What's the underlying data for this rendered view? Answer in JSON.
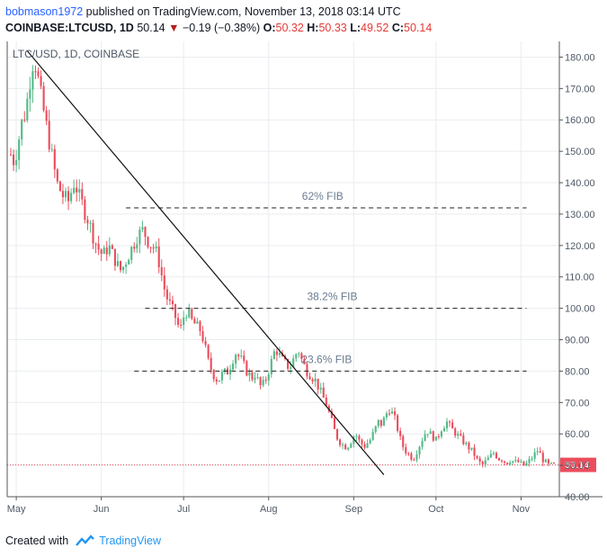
{
  "header": {
    "author": "bobmason1972",
    "published_text": "published on TradingView.com, November 13, 2018 03:14 UTC",
    "symbol": "COINBASE:LTCUSD, 1D",
    "last": "50.14",
    "change_arrow": "▼",
    "change": "−0.19 (−0.38%)",
    "o_label": "O:",
    "o_val": "50.32",
    "h_label": "H:",
    "h_val": "50.33",
    "l_label": "L:",
    "l_val": "49.52",
    "c_label": "C:",
    "c_val": "50.14"
  },
  "footer": {
    "created_with": "Created with",
    "brand": "TradingView"
  },
  "colors": {
    "up": "#53b987",
    "down": "#eb4d5c",
    "grid": "#e9ecef",
    "axis_text": "#4f5966",
    "price_tag": "#eb4d5c",
    "fib_text": "#6a7c90"
  },
  "chart_data": {
    "type": "candlestick",
    "title": "LTC/USD, 1D, COINBASE",
    "ylim": [
      40,
      185
    ],
    "yticks": [
      "180.00",
      "170.00",
      "160.00",
      "150.00",
      "140.00",
      "130.00",
      "120.00",
      "110.00",
      "100.00",
      "90.00",
      "80.00",
      "70.00",
      "60.00",
      "50.00",
      "40.00"
    ],
    "xticks": [
      "May",
      "Jun",
      "Jul",
      "Aug",
      "Sep",
      "Oct",
      "Nov"
    ],
    "xtick_dates": [
      "2018-05-01",
      "2018-06-01",
      "2018-07-01",
      "2018-08-01",
      "2018-09-01",
      "2018-10-01",
      "2018-11-01"
    ],
    "date_range": [
      "2018-04-29",
      "2018-11-13"
    ],
    "last_price": "50.14",
    "series": [
      {
        "name": "LTC/USD",
        "dates": [
          "2018-04-29",
          "2018-11-13"
        ],
        "close_path": [
          149,
          147,
          150,
          155,
          160,
          162,
          168,
          175,
          180,
          176,
          170,
          165,
          160,
          155,
          150,
          145,
          140,
          138,
          136,
          135,
          134,
          137,
          140,
          138,
          135,
          133,
          130,
          128,
          125,
          122,
          120,
          118,
          117,
          118,
          120,
          118,
          116,
          114,
          112,
          113,
          115,
          117,
          119,
          121,
          123,
          124,
          125,
          123,
          121,
          120,
          119,
          117,
          113,
          108,
          104,
          102,
          100,
          98,
          95,
          93,
          97,
          99,
          98,
          96,
          95,
          94,
          93,
          90,
          86,
          82,
          80,
          78,
          77,
          78,
          80,
          79,
          81,
          83,
          86,
          85,
          84,
          82,
          80,
          79,
          78,
          79,
          77,
          75,
          76,
          78,
          81,
          84,
          87,
          86,
          84,
          83,
          82,
          81,
          83,
          85,
          87,
          84,
          82,
          80,
          79,
          78,
          77,
          75,
          73,
          71,
          69,
          66,
          63,
          60,
          58,
          57,
          56,
          56,
          57,
          59,
          60,
          58,
          57,
          56,
          57,
          58,
          60,
          62,
          64,
          63,
          65,
          67,
          68,
          66,
          64,
          60,
          57,
          55,
          54,
          53,
          52,
          54,
          56,
          58,
          60,
          61,
          60,
          59,
          58,
          60,
          62,
          63,
          64,
          62,
          61,
          60,
          59,
          58,
          57,
          56,
          55,
          54,
          52,
          51,
          50,
          51,
          52,
          53,
          54,
          53,
          52,
          52,
          51,
          51,
          52,
          51,
          51,
          51,
          50,
          50,
          51,
          52,
          53,
          55,
          54,
          52,
          51,
          50,
          50,
          50
        ]
      }
    ],
    "annotations": {
      "fib_levels": [
        {
          "label": "62% FIB",
          "price": 132,
          "x_start": "2018-06-10",
          "x_end": "2018-11-03"
        },
        {
          "label": "38.2% FIB",
          "price": 100,
          "x_start": "2018-06-17",
          "x_end": "2018-11-03"
        },
        {
          "label": "23.6% FIB",
          "price": 80,
          "x_start": "2018-06-13",
          "x_end": "2018-11-03"
        }
      ],
      "trendline": {
        "from": {
          "date": "2018-05-05",
          "price": 182
        },
        "to": {
          "date": "2018-09-12",
          "price": 47
        }
      }
    }
  }
}
